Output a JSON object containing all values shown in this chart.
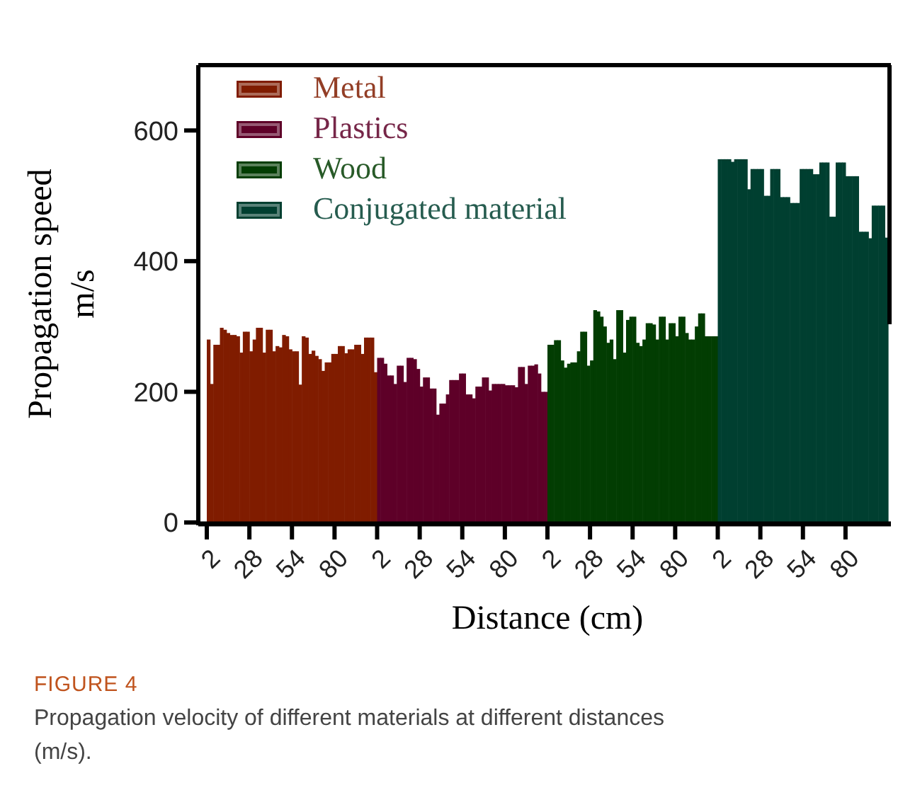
{
  "chart_data": {
    "type": "bar",
    "xlabel": "Distance (cm)",
    "ylabel": "Propagation speed\nm/s",
    "ylim": [
      0,
      700
    ],
    "yticks": [
      0,
      200,
      400,
      600
    ],
    "legend": "top left",
    "grid": false,
    "annotations": [
      "FIGURE 4",
      "Propagation velocity of different materials at different distances (m/s)."
    ],
    "categories": [
      "2",
      null,
      null,
      null,
      null,
      null,
      null,
      null,
      null,
      null,
      null,
      null,
      null,
      "28",
      null,
      null,
      null,
      null,
      null,
      null,
      null,
      null,
      null,
      null,
      null,
      null,
      "54",
      null,
      null,
      null,
      null,
      null,
      null,
      null,
      null,
      null,
      null,
      null,
      null,
      "80",
      null,
      null,
      null,
      null,
      null,
      null,
      null,
      null,
      null,
      null,
      null,
      null,
      "2",
      null,
      null,
      null,
      null,
      null,
      null,
      null,
      null,
      null,
      null,
      null,
      null,
      "28",
      null,
      null,
      null,
      null,
      null,
      null,
      null,
      null,
      null,
      null,
      null,
      null,
      "54",
      null,
      null,
      null,
      null,
      null,
      null,
      null,
      null,
      null,
      null,
      null,
      null,
      "80",
      null,
      null,
      null,
      null,
      null,
      null,
      null,
      null,
      null,
      null,
      null,
      null,
      "2",
      null,
      null,
      null,
      null,
      null,
      null,
      null,
      null,
      null,
      null,
      null,
      null,
      "28",
      null,
      null,
      null,
      null,
      null,
      null,
      null,
      null,
      null,
      null,
      null,
      null,
      "54",
      null,
      null,
      null,
      null,
      null,
      null,
      null,
      null,
      null,
      null,
      null,
      null,
      "80",
      null,
      null,
      null,
      null,
      null,
      null,
      null,
      null,
      null,
      null,
      null,
      null,
      "2",
      null,
      null,
      null,
      null,
      null,
      null,
      null,
      null,
      null,
      null,
      null,
      null,
      "28",
      null,
      null,
      null,
      null,
      null,
      null,
      null,
      null,
      null,
      null,
      null,
      null,
      "54",
      null,
      null,
      null,
      null,
      null,
      null,
      null,
      null,
      null,
      null,
      null,
      null,
      "80",
      null,
      null,
      null,
      null,
      null,
      null,
      null,
      null,
      null,
      null,
      null,
      null
    ],
    "series": [
      {
        "name": "Metal",
        "color": "#801c00",
        "values": [
          280,
          212,
          272,
          272,
          298,
          295,
          290,
          287,
          287,
          285,
          260,
          292,
          292,
          262,
          280,
          298,
          298,
          260,
          295,
          295,
          262,
          270,
          268,
          287,
          285,
          265,
          262,
          262,
          211,
          285,
          283,
          258,
          263,
          255,
          250,
          232,
          245,
          245,
          258,
          258,
          270,
          270,
          259,
          265,
          265,
          272,
          272,
          258,
          283,
          283,
          283,
          230,
          null,
          null,
          null,
          null,
          null,
          null,
          null,
          null,
          null,
          null,
          null,
          null,
          null,
          null,
          null,
          null,
          null,
          null,
          null,
          null,
          null,
          null,
          null,
          null,
          null,
          null,
          null,
          null,
          null,
          null,
          null,
          null,
          null,
          null,
          null,
          null,
          null,
          null,
          null,
          null,
          null,
          null,
          null,
          null,
          null,
          null,
          null,
          null,
          null,
          null,
          null,
          null,
          null,
          null,
          null,
          null,
          null,
          null,
          null,
          null,
          null,
          null,
          null,
          null,
          null,
          null,
          null,
          null,
          null,
          null,
          null,
          null,
          null,
          null,
          null,
          null,
          null,
          null,
          null,
          null,
          null,
          null,
          null,
          null,
          null,
          null,
          null,
          null,
          null,
          null,
          null,
          null,
          null,
          null,
          null,
          null,
          null,
          null,
          null,
          null,
          null,
          null,
          null,
          null,
          null,
          null,
          null,
          null,
          null,
          null,
          null,
          null,
          null,
          null,
          null,
          null,
          null,
          null,
          null,
          null,
          null,
          null,
          null,
          null,
          null,
          null,
          null,
          null,
          null,
          null,
          null,
          null,
          null,
          null,
          null,
          null,
          null,
          null,
          null,
          null,
          null,
          null,
          null,
          null,
          null,
          null,
          null,
          null,
          null,
          null,
          null,
          null,
          null,
          null,
          null,
          null
        ]
      },
      {
        "name": "Plastics",
        "color": "#5e0028",
        "values": [
          null,
          null,
          null,
          null,
          null,
          null,
          null,
          null,
          null,
          null,
          null,
          null,
          null,
          null,
          null,
          null,
          null,
          null,
          null,
          null,
          null,
          null,
          null,
          null,
          null,
          null,
          null,
          null,
          null,
          null,
          null,
          null,
          null,
          null,
          null,
          null,
          null,
          null,
          null,
          null,
          null,
          null,
          null,
          null,
          null,
          null,
          null,
          null,
          null,
          null,
          null,
          null,
          252,
          252,
          243,
          225,
          225,
          212,
          240,
          240,
          215,
          252,
          252,
          250,
          235,
          208,
          222,
          222,
          205,
          205,
          165,
          182,
          182,
          196,
          218,
          218,
          218,
          228,
          228,
          196,
          196,
          190,
          208,
          208,
          222,
          222,
          202,
          212,
          212,
          212,
          212,
          210,
          210,
          210,
          207,
          238,
          238,
          212,
          240,
          240,
          242,
          228,
          200,
          200,
          null,
          null,
          null,
          null,
          null,
          null,
          null,
          null,
          null,
          null,
          null,
          null,
          null,
          null,
          null,
          null,
          null,
          null,
          null,
          null,
          null,
          null,
          null,
          null,
          null,
          null,
          null,
          null,
          null,
          null,
          null,
          null,
          null,
          null,
          null,
          null,
          null,
          null,
          null,
          null,
          null,
          null,
          null,
          null,
          null,
          null,
          null,
          null,
          null,
          null,
          null,
          null,
          null,
          null,
          null,
          null,
          null,
          null,
          null,
          null,
          null,
          null,
          null,
          null,
          null,
          null,
          null,
          null,
          null,
          null,
          null,
          null,
          null,
          null,
          null,
          null,
          null,
          null,
          null,
          null,
          null,
          null,
          null,
          null,
          null,
          null,
          null,
          null,
          null,
          null,
          null,
          null,
          null,
          null,
          null,
          null,
          null,
          null,
          null,
          null,
          null,
          null,
          null,
          null
        ]
      },
      {
        "name": "Wood",
        "color": "#023d02",
        "values": [
          null,
          null,
          null,
          null,
          null,
          null,
          null,
          null,
          null,
          null,
          null,
          null,
          null,
          null,
          null,
          null,
          null,
          null,
          null,
          null,
          null,
          null,
          null,
          null,
          null,
          null,
          null,
          null,
          null,
          null,
          null,
          null,
          null,
          null,
          null,
          null,
          null,
          null,
          null,
          null,
          null,
          null,
          null,
          null,
          null,
          null,
          null,
          null,
          null,
          null,
          null,
          null,
          null,
          null,
          null,
          null,
          null,
          null,
          null,
          null,
          null,
          null,
          null,
          null,
          null,
          null,
          null,
          null,
          null,
          null,
          null,
          null,
          null,
          null,
          null,
          null,
          null,
          null,
          null,
          null,
          null,
          null,
          null,
          null,
          null,
          null,
          null,
          null,
          null,
          null,
          null,
          null,
          null,
          null,
          null,
          null,
          null,
          null,
          null,
          null,
          null,
          null,
          null,
          null,
          272,
          272,
          279,
          279,
          248,
          237,
          243,
          245,
          245,
          262,
          292,
          292,
          240,
          248,
          325,
          323,
          315,
          300,
          275,
          280,
          250,
          325,
          325,
          260,
          310,
          315,
          315,
          275,
          270,
          280,
          305,
          305,
          303,
          280,
          315,
          315,
          280,
          305,
          305,
          285,
          315,
          315,
          290,
          280,
          280,
          300,
          320,
          320,
          285,
          285,
          285,
          285,
          null,
          null,
          null,
          null,
          null,
          null,
          null,
          null,
          null,
          null,
          null,
          null,
          null,
          null,
          null,
          null,
          null,
          null,
          null,
          null,
          null,
          null,
          null,
          null,
          null,
          null,
          null,
          null,
          null,
          null,
          null,
          null,
          null,
          null,
          null,
          null,
          null,
          null,
          null,
          null,
          null,
          null,
          null,
          null,
          null,
          null,
          null,
          null,
          null,
          null,
          null,
          null
        ]
      },
      {
        "name": "Conjugated material",
        "color": "#003f30",
        "values": [
          null,
          null,
          null,
          null,
          null,
          null,
          null,
          null,
          null,
          null,
          null,
          null,
          null,
          null,
          null,
          null,
          null,
          null,
          null,
          null,
          null,
          null,
          null,
          null,
          null,
          null,
          null,
          null,
          null,
          null,
          null,
          null,
          null,
          null,
          null,
          null,
          null,
          null,
          null,
          null,
          null,
          null,
          null,
          null,
          null,
          null,
          null,
          null,
          null,
          null,
          null,
          null,
          null,
          null,
          null,
          null,
          null,
          null,
          null,
          null,
          null,
          null,
          null,
          null,
          null,
          null,
          null,
          null,
          null,
          null,
          null,
          null,
          null,
          null,
          null,
          null,
          null,
          null,
          null,
          null,
          null,
          null,
          null,
          null,
          null,
          null,
          null,
          null,
          null,
          null,
          null,
          null,
          null,
          null,
          null,
          null,
          null,
          null,
          null,
          null,
          null,
          null,
          null,
          null,
          null,
          null,
          null,
          null,
          null,
          null,
          null,
          null,
          null,
          null,
          null,
          null,
          null,
          null,
          null,
          null,
          null,
          null,
          null,
          null,
          null,
          null,
          null,
          null,
          null,
          null,
          null,
          null,
          null,
          null,
          null,
          null,
          null,
          null,
          null,
          null,
          null,
          null,
          null,
          null,
          null,
          null,
          null,
          null,
          null,
          null,
          null,
          null,
          null,
          null,
          null,
          null,
          556,
          556,
          556,
          556,
          552,
          556,
          556,
          556,
          556,
          510,
          541,
          541,
          541,
          541,
          500,
          500,
          541,
          541,
          541,
          498,
          498,
          498,
          489,
          489,
          489,
          541,
          541,
          541,
          541,
          533,
          533,
          551,
          551,
          551,
          468,
          468,
          551,
          551,
          551,
          530,
          530,
          530,
          530,
          445,
          445,
          445,
          435,
          485,
          485,
          485,
          485,
          436
        ]
      }
    ]
  }
}
